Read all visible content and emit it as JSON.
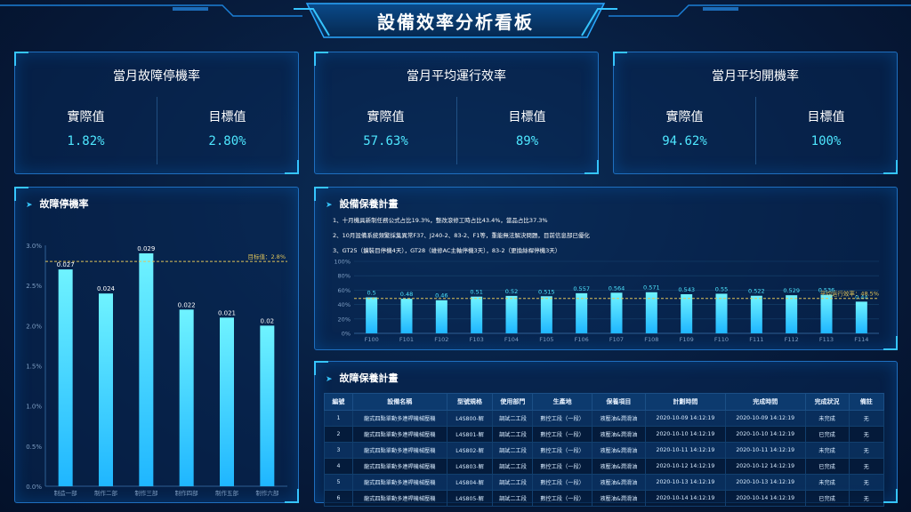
{
  "header": {
    "title": "設備效率分析看板"
  },
  "kpis": [
    {
      "title": "當月故障停機率",
      "actual_label": "實際值",
      "actual": "1.82%",
      "target_label": "目標值",
      "target": "2.80%"
    },
    {
      "title": "當月平均運行效率",
      "actual_label": "實際值",
      "actual": "57.63%",
      "target_label": "目標值",
      "target": "89%"
    },
    {
      "title": "當月平均開機率",
      "actual_label": "實際值",
      "actual": "94.62%",
      "target_label": "目標值",
      "target": "100%"
    }
  ],
  "left_panel": {
    "title": "故障停機率"
  },
  "right_top_panel": {
    "title": "設備保養計畫",
    "notes": [
      "1、十月機具新制任務公式占比19.3%，整改滾修工時占比43.4%，當品占比37.3%",
      "2、10月設備系統頻繁採集異常F37、J240-2、83-2、F1等，重能無法解決問題，目前信息部已優化",
      "3、GT25（擴裝目停機4天），GT28（維修AC主軸停機3天），83-2（更換絲桿停機3天）"
    ]
  },
  "bottom_panel": {
    "title": "故障保養計畫",
    "columns": [
      "編號",
      "設備名稱",
      "型號規格",
      "使用部門",
      "生產地",
      "保養項目",
      "計劃時間",
      "完成時間",
      "完成狀況",
      "備註"
    ],
    "rows": [
      [
        "1",
        "龍式四點單動多連桿機械壓機",
        "L4S800-解",
        "調試二工段",
        "數控工段（一段）",
        "液壓油&潤滑油",
        "2020-10-09 14:12:19",
        "2020-10-09 14:12:19",
        "未完成",
        "无"
      ],
      [
        "2",
        "龍式四點單動多連桿機械壓機",
        "L4S801-解",
        "調試二工段",
        "數控工段（一段）",
        "液壓油&潤滑油",
        "2020-10-10 14:12:19",
        "2020-10-10 14:12:19",
        "已完成",
        "无"
      ],
      [
        "3",
        "龍式四點單動多連桿機械壓機",
        "L4S802-解",
        "調試二工段",
        "數控工段（一段）",
        "液壓油&潤滑油",
        "2020-10-11 14:12:19",
        "2020-10-11 14:12:19",
        "未完成",
        "无"
      ],
      [
        "4",
        "龍式四點單動多連桿機械壓機",
        "L4S803-解",
        "調試二工段",
        "數控工段（一段）",
        "液壓油&潤滑油",
        "2020-10-12 14:12:19",
        "2020-10-12 14:12:19",
        "已完成",
        "无"
      ],
      [
        "5",
        "龍式四點單動多連桿機械壓機",
        "L4S804-解",
        "調試二工段",
        "數控工段（一段）",
        "液壓油&潤滑油",
        "2020-10-13 14:12:19",
        "2020-10-13 14:12:19",
        "未完成",
        "无"
      ],
      [
        "6",
        "龍式四點單動多連桿機械壓機",
        "L4S805-解",
        "調試二工段",
        "數控工段（一段）",
        "液壓油&潤滑油",
        "2020-10-14 14:12:19",
        "2020-10-14 14:12:19",
        "已完成",
        "无"
      ]
    ]
  },
  "chart_data": [
    {
      "type": "bar",
      "categories": [
        "制造一部",
        "制作二部",
        "制作三部",
        "制作四部",
        "制作五部",
        "制作六部"
      ],
      "values": [
        0.027,
        0.024,
        0.029,
        0.022,
        0.021,
        0.02
      ],
      "ylim": [
        0,
        0.03
      ],
      "yticks": [
        "0.0%",
        "0.5%",
        "1.0%",
        "1.5%",
        "2.0%",
        "2.5%",
        "3.0%"
      ],
      "target_value": 0.028,
      "target_label": "目标值：2.8%",
      "grid": false
    },
    {
      "type": "bar",
      "categories": [
        "F100",
        "F101",
        "F102",
        "F103",
        "F104",
        "F105",
        "F106",
        "F107",
        "F108",
        "F109",
        "F110",
        "F111",
        "F112",
        "F113",
        "F114"
      ],
      "values": [
        0.5,
        0.48,
        0.46,
        0.51,
        0.52,
        0.515,
        0.557,
        0.564,
        0.571,
        0.543,
        0.55,
        0.522,
        0.529,
        0.536,
        0.44
      ],
      "labels": [
        "0.5",
        "0.48",
        "0.46",
        "0.51",
        "0.52",
        "0.515",
        "0.557",
        "0.564",
        "0.571",
        "0.543",
        "0.55",
        "0.522",
        "0.529",
        "0.536",
        "0.44"
      ],
      "ylim": [
        0,
        1
      ],
      "yticks": [
        "0%",
        "20%",
        "40%",
        "60%",
        "80%",
        "100%"
      ],
      "target_value": 0.485,
      "target_label": "平均运行效率：48.5%",
      "grid": true
    }
  ],
  "colors": {
    "accent": "#35c6ff",
    "value": "#4ee7ff",
    "target_line": "#e0c45a",
    "bar_top": "#6ff3ff",
    "bar_bottom": "#1fb6ff"
  }
}
